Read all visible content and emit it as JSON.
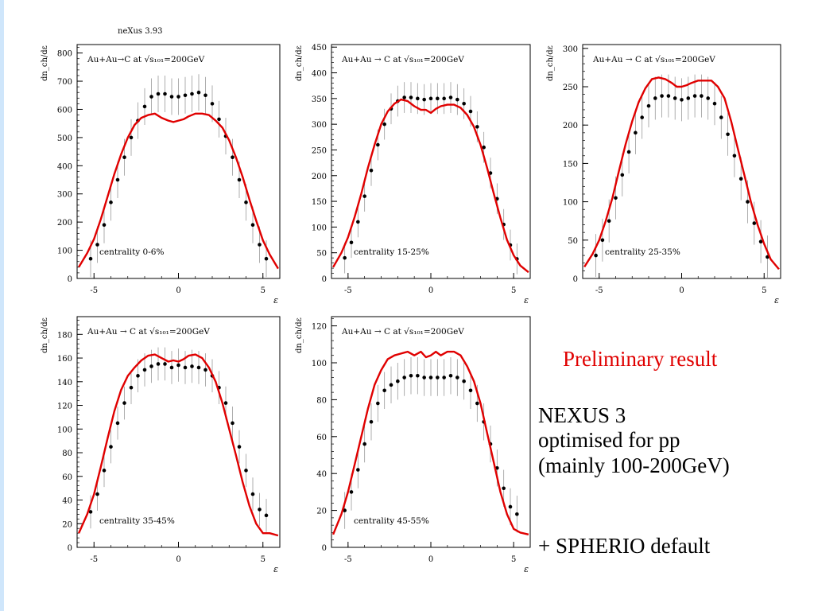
{
  "header": {
    "version_label": "neXus 3.93"
  },
  "notes": {
    "preliminary": "Preliminary result",
    "model_line1": "NEXUS 3",
    "model_line2": "optimised for pp",
    "model_line3": "(mainly 100-200GeV)",
    "spherio": "+ SPHERIO default"
  },
  "colors": {
    "model_curve": "#e00000",
    "data_points": "#000000",
    "error_bars": "#9a9a9a",
    "slide_rule": "#cfe6fb"
  },
  "chart_data": [
    {
      "type": "scatter",
      "title": "Au+Au→C at √s₁₀₁=200GeV",
      "annotation": "centrality 0-6%",
      "ylabel": "dn_ch/dε",
      "xlabel": "ε",
      "xlim": [
        -6,
        6
      ],
      "ylim": [
        0,
        830
      ],
      "xticks": [
        -5,
        0,
        5
      ],
      "yticks": [
        0,
        100,
        200,
        300,
        400,
        500,
        600,
        700,
        800
      ],
      "series": [
        {
          "kind": "data",
          "error": 65,
          "x": [
            -5.2,
            -4.8,
            -4.4,
            -4.0,
            -3.6,
            -3.2,
            -2.8,
            -2.4,
            -2.0,
            -1.6,
            -1.2,
            -0.8,
            -0.4,
            0,
            0.4,
            0.8,
            1.2,
            1.6,
            2.0,
            2.4,
            2.8,
            3.2,
            3.6,
            4.0,
            4.4,
            4.8,
            5.2
          ],
          "y": [
            70,
            120,
            190,
            270,
            350,
            430,
            500,
            560,
            610,
            645,
            655,
            655,
            645,
            645,
            650,
            655,
            660,
            650,
            620,
            565,
            505,
            430,
            350,
            270,
            190,
            120,
            70
          ]
        },
        {
          "kind": "model",
          "x": [
            -5.9,
            -5.4,
            -5.0,
            -4.6,
            -4.2,
            -3.8,
            -3.4,
            -3.0,
            -2.6,
            -2.2,
            -1.8,
            -1.4,
            -1.0,
            -0.6,
            -0.3,
            0,
            0.3,
            0.6,
            1.0,
            1.4,
            1.8,
            2.2,
            2.6,
            3.0,
            3.4,
            3.8,
            4.2,
            4.6,
            5.0,
            5.4,
            5.9
          ],
          "y": [
            40,
            90,
            140,
            210,
            290,
            370,
            440,
            500,
            545,
            570,
            580,
            585,
            570,
            560,
            555,
            560,
            565,
            575,
            585,
            585,
            580,
            560,
            535,
            490,
            430,
            360,
            280,
            205,
            135,
            85,
            35
          ]
        }
      ]
    },
    {
      "type": "scatter",
      "title": "Au+Au → C at √s₁₀₁=200GeV",
      "annotation": "centrality 15-25%",
      "ylabel": "dn_ch/dε",
      "xlabel": "ε",
      "xlim": [
        -6,
        6
      ],
      "ylim": [
        0,
        455
      ],
      "xticks": [
        -5,
        0,
        5
      ],
      "yticks": [
        0,
        50,
        100,
        150,
        200,
        250,
        300,
        350,
        400,
        450
      ],
      "series": [
        {
          "kind": "data",
          "error": 30,
          "x": [
            -5.2,
            -4.8,
            -4.4,
            -4.0,
            -3.6,
            -3.2,
            -2.8,
            -2.4,
            -2.0,
            -1.6,
            -1.2,
            -0.8,
            -0.4,
            0,
            0.4,
            0.8,
            1.2,
            1.6,
            2.0,
            2.4,
            2.8,
            3.2,
            3.6,
            4.0,
            4.4,
            4.8,
            5.2
          ],
          "y": [
            40,
            70,
            110,
            160,
            210,
            260,
            300,
            330,
            345,
            352,
            352,
            350,
            348,
            350,
            350,
            350,
            352,
            348,
            340,
            325,
            295,
            255,
            205,
            155,
            105,
            65,
            38
          ]
        },
        {
          "kind": "model",
          "x": [
            -5.9,
            -5.4,
            -5.0,
            -4.6,
            -4.2,
            -3.8,
            -3.4,
            -3.0,
            -2.6,
            -2.2,
            -1.8,
            -1.4,
            -1.0,
            -0.6,
            -0.3,
            0,
            0.3,
            0.6,
            1.0,
            1.4,
            1.8,
            2.2,
            2.6,
            3.0,
            3.4,
            3.8,
            4.2,
            4.6,
            5.0,
            5.4,
            5.9
          ],
          "y": [
            22,
            50,
            80,
            120,
            165,
            215,
            260,
            300,
            325,
            340,
            348,
            345,
            335,
            328,
            328,
            322,
            330,
            335,
            338,
            338,
            332,
            318,
            295,
            260,
            215,
            165,
            118,
            75,
            45,
            25,
            12
          ]
        }
      ]
    },
    {
      "type": "scatter",
      "title": "Au+Au → C at √s₁₀₁=200GeV",
      "annotation": "centrality 25-35%",
      "ylabel": "dn_ch/dε",
      "xlabel": "ε",
      "xlim": [
        -6,
        6
      ],
      "ylim": [
        0,
        305
      ],
      "xticks": [
        -5,
        0,
        5
      ],
      "yticks": [
        0,
        50,
        100,
        150,
        200,
        250,
        300
      ],
      "series": [
        {
          "kind": "data",
          "error": 28,
          "x": [
            -5.2,
            -4.8,
            -4.4,
            -4.0,
            -3.6,
            -3.2,
            -2.8,
            -2.4,
            -2.0,
            -1.6,
            -1.2,
            -0.8,
            -0.4,
            0,
            0.4,
            0.8,
            1.2,
            1.6,
            2.0,
            2.4,
            2.8,
            3.2,
            3.6,
            4.0,
            4.4,
            4.8,
            5.2
          ],
          "y": [
            30,
            50,
            75,
            105,
            135,
            165,
            190,
            210,
            225,
            235,
            238,
            238,
            235,
            233,
            235,
            238,
            238,
            235,
            228,
            210,
            188,
            160,
            130,
            100,
            72,
            48,
            28
          ]
        },
        {
          "kind": "model",
          "x": [
            -5.9,
            -5.4,
            -5.0,
            -4.6,
            -4.2,
            -3.8,
            -3.4,
            -3.0,
            -2.6,
            -2.2,
            -1.8,
            -1.4,
            -1.0,
            -0.6,
            -0.3,
            0,
            0.3,
            0.6,
            1.0,
            1.4,
            1.8,
            2.2,
            2.6,
            3.0,
            3.4,
            3.8,
            4.2,
            4.6,
            5.0,
            5.4,
            5.9
          ],
          "y": [
            15,
            32,
            50,
            75,
            105,
            140,
            175,
            205,
            230,
            248,
            260,
            262,
            260,
            255,
            250,
            250,
            252,
            255,
            258,
            258,
            258,
            250,
            235,
            205,
            170,
            135,
            100,
            70,
            45,
            25,
            12
          ]
        }
      ]
    },
    {
      "type": "scatter",
      "title": "Au+Au → C at √s₁₀₁=200GeV",
      "annotation": "centrality 35-45%",
      "ylabel": "dn_ch/dε",
      "xlabel": "ε",
      "xlim": [
        -6,
        6
      ],
      "ylim": [
        0,
        195
      ],
      "xticks": [
        -5,
        0,
        5
      ],
      "yticks": [
        0,
        20,
        40,
        60,
        80,
        100,
        120,
        140,
        160,
        180
      ],
      "series": [
        {
          "kind": "data",
          "error": 14,
          "x": [
            -5.2,
            -4.8,
            -4.4,
            -4.0,
            -3.6,
            -3.2,
            -2.8,
            -2.4,
            -2.0,
            -1.6,
            -1.2,
            -0.8,
            -0.4,
            0,
            0.4,
            0.8,
            1.2,
            1.6,
            2.0,
            2.4,
            2.8,
            3.2,
            3.6,
            4.0,
            4.4,
            4.8,
            5.2
          ],
          "y": [
            30,
            45,
            65,
            85,
            105,
            122,
            135,
            145,
            150,
            153,
            155,
            155,
            152,
            154,
            152,
            153,
            152,
            150,
            145,
            135,
            122,
            105,
            85,
            65,
            45,
            32,
            27
          ]
        },
        {
          "kind": "model",
          "x": [
            -5.9,
            -5.4,
            -5.0,
            -4.6,
            -4.2,
            -3.8,
            -3.4,
            -3.0,
            -2.6,
            -2.2,
            -1.8,
            -1.4,
            -1.0,
            -0.6,
            -0.3,
            0,
            0.3,
            0.6,
            1.0,
            1.4,
            1.8,
            2.2,
            2.6,
            3.0,
            3.4,
            3.8,
            4.2,
            4.6,
            5.0,
            5.4,
            5.9
          ],
          "y": [
            12,
            28,
            45,
            68,
            92,
            115,
            133,
            145,
            152,
            158,
            162,
            163,
            160,
            157,
            158,
            157,
            159,
            162,
            163,
            160,
            152,
            140,
            122,
            100,
            78,
            55,
            35,
            20,
            12,
            12,
            10
          ]
        }
      ]
    },
    {
      "type": "scatter",
      "title": "Au+Au → C at √s₁₀₁=200GeV",
      "annotation": "centrality 45-55%",
      "ylabel": "dn_ch/dε",
      "xlabel": "ε",
      "xlim": [
        -6,
        6
      ],
      "ylim": [
        0,
        125
      ],
      "xticks": [
        -5,
        0,
        5
      ],
      "yticks": [
        0,
        20,
        40,
        60,
        80,
        100,
        120
      ],
      "series": [
        {
          "kind": "data",
          "error": 10,
          "x": [
            -5.2,
            -4.8,
            -4.4,
            -4.0,
            -3.6,
            -3.2,
            -2.8,
            -2.4,
            -2.0,
            -1.6,
            -1.2,
            -0.8,
            -0.4,
            0,
            0.4,
            0.8,
            1.2,
            1.6,
            2.0,
            2.4,
            2.8,
            3.2,
            3.6,
            4.0,
            4.4,
            4.8,
            5.2
          ],
          "y": [
            20,
            30,
            42,
            56,
            68,
            78,
            85,
            88,
            90,
            92,
            93,
            93,
            92,
            92,
            92,
            92,
            93,
            92,
            90,
            85,
            78,
            68,
            56,
            43,
            32,
            22,
            18
          ]
        },
        {
          "kind": "model",
          "x": [
            -5.9,
            -5.4,
            -5.0,
            -4.6,
            -4.2,
            -3.8,
            -3.4,
            -3.0,
            -2.6,
            -2.2,
            -1.8,
            -1.4,
            -1.0,
            -0.6,
            -0.3,
            0,
            0.3,
            0.6,
            1.0,
            1.4,
            1.8,
            2.2,
            2.6,
            3.0,
            3.4,
            3.8,
            4.2,
            4.6,
            5.0,
            5.4,
            5.9
          ],
          "y": [
            7,
            18,
            30,
            45,
            60,
            75,
            88,
            96,
            102,
            104,
            105,
            106,
            104,
            106,
            103,
            104,
            106,
            104,
            106,
            106,
            104,
            98,
            90,
            78,
            62,
            46,
            30,
            18,
            10,
            8,
            7
          ]
        }
      ]
    }
  ]
}
